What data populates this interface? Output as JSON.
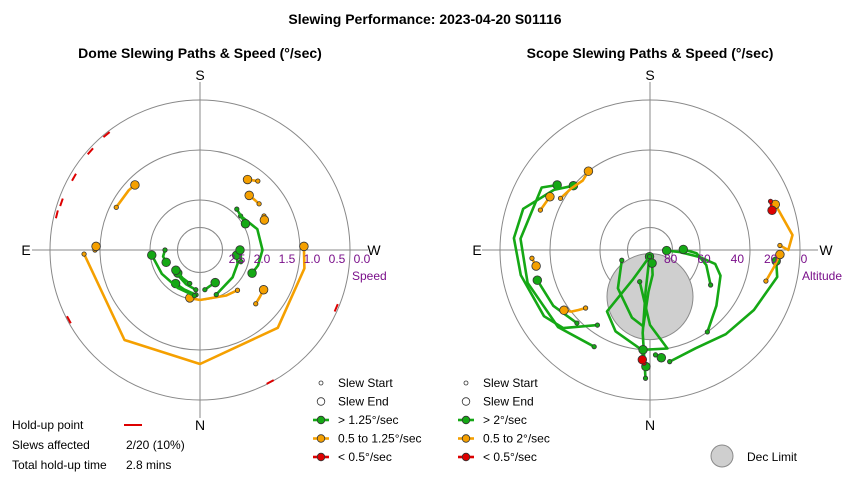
{
  "figure": {
    "title": "Slewing Performance: 2023-04-20 S01116"
  },
  "chart_data": [
    {
      "type": "polar",
      "title": "Dome Slewing Paths & Speed (°/sec)",
      "directions": {
        "top": "S",
        "bottom": "N",
        "left": "E",
        "right": "W"
      },
      "radial_axis_label": "Speed",
      "radial_ticks": [
        "2.5",
        "2.0",
        "1.5",
        "1.0",
        "0.5",
        "0.0"
      ],
      "radial_tick_values": [
        2.5,
        2.0,
        1.5,
        1.0,
        0.5,
        0.0
      ],
      "radial_range": [
        3.0,
        0.0
      ],
      "legend": [
        {
          "name": "Slew Start",
          "marker": "small-circle"
        },
        {
          "name": "Slew End",
          "marker": "circle"
        },
        {
          "name": "> 1.25°/sec",
          "color": "#15a815"
        },
        {
          "name": "0.5 to 1.25°/sec",
          "color": "#f5a000"
        },
        {
          "name": "< 0.5°/sec",
          "color": "#dd0000"
        }
      ],
      "holdup_summary": {
        "holdup_label": "Hold-up point",
        "slews_label": "Slews affected",
        "slews_value": "2/20 (10%)",
        "time_label": "Total hold-up time",
        "time_value": "2.8 mins"
      },
      "holdup_points": [
        {
          "az": 118,
          "r": 3.18
        },
        {
          "az": 76,
          "r": 3.2
        },
        {
          "az": 71,
          "r": 3.22
        },
        {
          "az": 48,
          "r": 3.2
        },
        {
          "az": 39,
          "r": 3.18
        },
        {
          "az": 60,
          "r": 3.24
        },
        {
          "az": 247,
          "r": 3.19
        },
        {
          "az": 208,
          "r": 3.16
        }
      ],
      "slews": [
        {
          "color": "#f5a000",
          "points": [
            [
              92,
              0.68
            ],
            [
              140,
              0.65
            ],
            [
              180,
              0.72
            ],
            [
              225,
              0.8
            ],
            [
              260,
              0.88
            ],
            [
              272,
              0.92
            ]
          ]
        },
        {
          "color": "#f5a000",
          "points": [
            [
              63,
              1.12
            ],
            [
              50,
              1.14
            ],
            [
              45,
              1.16
            ]
          ]
        },
        {
          "color": "#f5a000",
          "points": [
            [
              90,
              0.9
            ],
            [
              88,
              0.92
            ]
          ]
        },
        {
          "color": "#f5a000",
          "points": [
            [
              223,
              1.9
            ],
            [
              210,
              1.95
            ],
            [
              180,
              2.0
            ],
            [
              170,
              2.02
            ],
            [
              168,
              2.02
            ]
          ]
        },
        {
          "color": "#15a815",
          "points": [
            [
              200,
              2.05
            ],
            [
              230,
              2.15
            ],
            [
              250,
              2.2
            ],
            [
              262,
              2.26
            ]
          ]
        },
        {
          "color": "#15a815",
          "points": [
            [
              175,
              2.1
            ],
            [
              158,
              2.15
            ],
            [
              144,
              2.17
            ]
          ]
        },
        {
          "color": "#15a815",
          "points": [
            [
              174,
              2.2
            ],
            [
              158,
              2.26
            ],
            [
              144,
              2.32
            ],
            [
              136,
              2.36
            ]
          ]
        },
        {
          "color": "#15a815",
          "points": [
            [
              163,
              2.3
            ],
            [
              148,
              2.34
            ],
            [
              130,
              2.37
            ]
          ]
        },
        {
          "color": "#15a815",
          "points": [
            [
              187,
              2.2
            ],
            [
              195,
              2.25
            ],
            [
              205,
              2.28
            ]
          ]
        },
        {
          "color": "#15a815",
          "points": [
            [
              173,
              2.08
            ],
            [
              150,
              2.12
            ],
            [
              122,
              2.1
            ],
            [
              96,
              2.03
            ]
          ]
        },
        {
          "color": "#15a815",
          "points": [
            [
              254,
              2.15
            ],
            [
              265,
              2.18
            ],
            [
              270,
              2.2
            ]
          ]
        },
        {
          "color": "#f5a000",
          "points": [
            [
              226,
              1.45
            ],
            [
              232,
              1.48
            ],
            [
              238,
              1.5
            ]
          ]
        },
        {
          "color": "#f5a000",
          "points": [
            [
              298,
              1.55
            ],
            [
              295,
              1.58
            ]
          ]
        },
        {
          "color": "#f5a000",
          "points": [
            [
              308,
              1.5
            ],
            [
              314,
              1.52
            ],
            [
              318,
              1.53
            ]
          ]
        },
        {
          "color": "#15a815",
          "points": [
            [
              310,
              1.94
            ],
            [
              290,
              1.78
            ],
            [
              270,
              1.75
            ],
            [
              255,
              1.8
            ],
            [
              246,
              1.86
            ]
          ]
        },
        {
          "color": "#15a815",
          "points": [
            [
              318,
              1.9
            ],
            [
              300,
              1.95
            ]
          ]
        },
        {
          "color": "#15a815",
          "points": [
            [
              90,
              2.3
            ],
            [
              100,
              2.25
            ],
            [
              110,
              2.28
            ]
          ]
        },
        {
          "color": "#f5a000",
          "points": [
            [
              320,
              1.2
            ],
            [
              326,
              1.3
            ]
          ]
        }
      ]
    },
    {
      "type": "polar",
      "title": "Scope Slewing Paths & Speed (°/sec)",
      "directions": {
        "top": "S",
        "bottom": "N",
        "left": "E",
        "right": "W"
      },
      "radial_axis_label": "Altitude",
      "radial_ticks": [
        "80",
        "60",
        "40",
        "20",
        "0"
      ],
      "radial_tick_values": [
        80,
        60,
        40,
        20,
        0
      ],
      "radial_range": [
        90,
        0
      ],
      "legend": [
        {
          "name": "Slew Start",
          "marker": "small-circle"
        },
        {
          "name": "Slew End",
          "marker": "circle"
        },
        {
          "name": "> 2°/sec",
          "color": "#15a815"
        },
        {
          "name": "0.5 to 2°/sec",
          "color": "#f5a000"
        },
        {
          "name": "< 0.5°/sec",
          "color": "#dd0000"
        },
        {
          "name": "Dec Limit",
          "marker": "grey-disc"
        }
      ],
      "dec_limit": {
        "az": 0,
        "alt": 55,
        "radius_alt_units": 24
      },
      "slews": [
        {
          "color": "#15a815",
          "points": [
            [
              178,
              13
            ],
            [
              175,
              40
            ],
            [
              174,
              65
            ],
            [
              176,
              86
            ]
          ]
        },
        {
          "color": "#15a815",
          "points": [
            [
              176,
              86
            ],
            [
              150,
              70
            ],
            [
              145,
              45
            ],
            [
              157,
              37
            ],
            [
              175,
              30
            ],
            [
              178,
              20
            ]
          ]
        },
        {
          "color": "#15a815",
          "points": [
            [
              190,
              22
            ],
            [
              205,
              25
            ],
            [
              222,
              22
            ],
            [
              240,
              18
            ],
            [
              258,
              12
            ],
            [
              265,
              14
            ]
          ]
        },
        {
          "color": "#15a815",
          "points": [
            [
              110,
              72
            ],
            [
              140,
              60
            ],
            [
              165,
              48
            ],
            [
              175,
              44
            ],
            [
              178,
              65
            ],
            [
              186,
              75
            ],
            [
              189,
              82
            ]
          ]
        },
        {
          "color": "#15a815",
          "points": [
            [
              215,
              30
            ],
            [
              230,
              38
            ],
            [
              250,
              45
            ],
            [
              258,
              50
            ],
            [
              262,
              60
            ],
            [
              266,
              72
            ],
            [
              268,
              80
            ]
          ]
        },
        {
          "color": "#15a815",
          "points": [
            [
              240,
              48
            ],
            [
              255,
              55
            ],
            [
              266,
              62
            ],
            [
              271,
              70
            ]
          ]
        },
        {
          "color": "#15a815",
          "points": [
            [
              150,
              23
            ],
            [
              130,
              18
            ],
            [
              105,
              14
            ],
            [
              85,
              12
            ],
            [
              60,
              15
            ],
            [
              55,
              22
            ]
          ]
        },
        {
          "color": "#15a815",
          "points": [
            [
              162,
              70
            ],
            [
              180,
              45
            ],
            [
              190,
              30
            ],
            [
              176,
              30
            ]
          ]
        },
        {
          "color": "#15a815",
          "points": [
            [
              145,
              35
            ],
            [
              132,
              20
            ],
            [
              122,
              15
            ],
            [
              101,
              11
            ],
            [
              85,
              8
            ],
            [
              72,
              10
            ],
            [
              58,
              22
            ],
            [
              50,
              30
            ]
          ]
        },
        {
          "color": "#15a815",
          "points": [
            [
              135,
              28
            ],
            [
              120,
              23
            ],
            [
              105,
              20
            ]
          ]
        },
        {
          "color": "#f5a000",
          "points": [
            [
              132,
              38
            ],
            [
              130,
              34
            ],
            [
              128,
              30
            ],
            [
              125,
              27
            ]
          ]
        },
        {
          "color": "#f5a000",
          "points": [
            [
              60,
              28
            ],
            [
              52,
              30
            ],
            [
              44,
              32
            ],
            [
              38,
              30
            ]
          ]
        },
        {
          "color": "#f5a000",
          "points": [
            [
              94,
              19
            ],
            [
              96,
              20
            ],
            [
              98,
              21
            ]
          ]
        },
        {
          "color": "#f5a000",
          "points": [
            [
              255,
              18
            ],
            [
              262,
              15
            ],
            [
              268,
              12
            ]
          ]
        },
        {
          "color": "#f5a000",
          "points": [
            [
              272,
              12
            ],
            [
              270,
              7
            ],
            [
              276,
              4
            ],
            [
              290,
              10
            ]
          ]
        },
        {
          "color": "#f5a000",
          "points": [
            [
              70,
              20
            ],
            [
              62,
              22
            ]
          ]
        },
        {
          "color": "#dd0000",
          "points": [
            [
              292,
              12
            ],
            [
              288,
              13
            ]
          ]
        },
        {
          "color": "#dd0000",
          "points": [
            [
              177,
              22
            ],
            [
              176,
              24
            ]
          ]
        },
        {
          "color": "#15a815",
          "points": [
            [
              183,
              27
            ],
            [
              186,
              25
            ]
          ]
        }
      ]
    }
  ]
}
